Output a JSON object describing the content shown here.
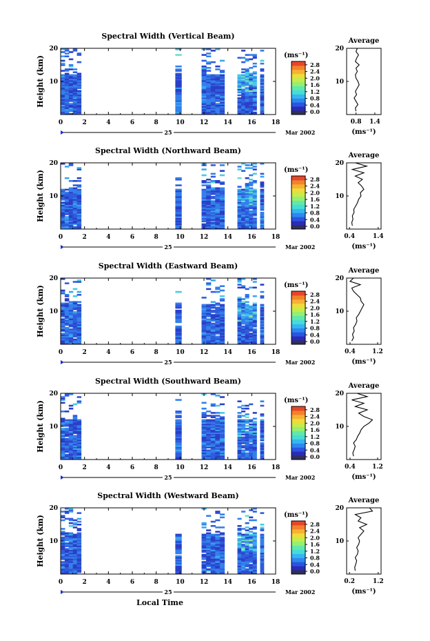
{
  "chart_data": [
    {
      "type": "heatmap",
      "title": "Spectral Width (Vertical Beam)",
      "ylabel": "Height (km)",
      "xticks": [
        "0",
        "2",
        "4",
        "6",
        "8",
        "10",
        "12",
        "14",
        "16",
        "18"
      ],
      "yticks": [
        "10",
        "20"
      ],
      "xlim": [
        0,
        18
      ],
      "ylim": [
        0,
        20
      ],
      "day_label": "25",
      "month_label": "Mar 2002",
      "colorbar": {
        "unit": "(ms⁻¹)",
        "ticks": [
          "0.0",
          "0.4",
          "0.8",
          "1.2",
          "1.6",
          "2.0",
          "2.4",
          "2.8"
        ]
      },
      "data_blocks": [
        {
          "start": 0.0,
          "end": 1.7
        },
        {
          "start": 9.6,
          "end": 10.1
        },
        {
          "start": 11.8,
          "end": 13.7
        },
        {
          "start": 14.8,
          "end": 16.4
        },
        {
          "start": 16.7,
          "end": 17.0
        }
      ],
      "average": {
        "title": "Average",
        "xlabel": "(ms⁻¹)",
        "xticks": [
          "0.8",
          "1.4"
        ],
        "yticks": [
          "10",
          "20"
        ],
        "xlim": [
          0.5,
          1.6
        ],
        "profile": [
          [
            0.8,
            1
          ],
          [
            0.78,
            2
          ],
          [
            0.86,
            3
          ],
          [
            0.8,
            4
          ],
          [
            0.74,
            5
          ],
          [
            0.82,
            6
          ],
          [
            0.78,
            7
          ],
          [
            0.84,
            8
          ],
          [
            0.9,
            9
          ],
          [
            0.86,
            10
          ],
          [
            0.8,
            11
          ],
          [
            0.78,
            12
          ],
          [
            0.84,
            13
          ],
          [
            0.8,
            14
          ],
          [
            0.9,
            15
          ],
          [
            0.78,
            16
          ],
          [
            0.82,
            17
          ],
          [
            0.88,
            18
          ],
          [
            0.8,
            19
          ],
          [
            0.84,
            20
          ]
        ]
      }
    },
    {
      "type": "heatmap",
      "title": "Spectral Width (Northward Beam)",
      "ylabel": "Height (km)",
      "xticks": [
        "0",
        "2",
        "4",
        "6",
        "8",
        "10",
        "12",
        "14",
        "16",
        "18"
      ],
      "yticks": [
        "10",
        "20"
      ],
      "xlim": [
        0,
        18
      ],
      "ylim": [
        0,
        20
      ],
      "day_label": "25",
      "month_label": "Mar 2002",
      "colorbar": {
        "unit": "(ms⁻¹)",
        "ticks": [
          "0.0",
          "0.4",
          "0.8",
          "1.2",
          "1.6",
          "2.0",
          "2.4",
          "2.8"
        ]
      },
      "data_blocks": [
        {
          "start": 0.0,
          "end": 1.7
        },
        {
          "start": 9.6,
          "end": 10.1
        },
        {
          "start": 11.8,
          "end": 13.7
        },
        {
          "start": 14.8,
          "end": 16.4
        },
        {
          "start": 16.7,
          "end": 17.0
        }
      ],
      "average": {
        "title": "Average",
        "xlabel": "(ms⁻¹)",
        "xticks": [
          "0.4",
          "1.4"
        ],
        "yticks": [
          "10",
          "20"
        ],
        "xlim": [
          0.3,
          1.5
        ],
        "profile": [
          [
            0.5,
            1
          ],
          [
            0.48,
            2
          ],
          [
            0.52,
            3
          ],
          [
            0.5,
            4
          ],
          [
            0.56,
            5
          ],
          [
            0.55,
            6
          ],
          [
            0.62,
            7
          ],
          [
            0.68,
            8
          ],
          [
            0.72,
            9
          ],
          [
            0.8,
            10
          ],
          [
            0.78,
            11
          ],
          [
            0.9,
            12
          ],
          [
            0.82,
            13
          ],
          [
            0.7,
            14
          ],
          [
            0.85,
            15
          ],
          [
            0.6,
            16
          ],
          [
            0.9,
            17
          ],
          [
            0.5,
            18
          ],
          [
            1.0,
            19
          ],
          [
            0.6,
            20
          ]
        ]
      }
    },
    {
      "type": "heatmap",
      "title": "Spectral Width (Eastward Beam)",
      "ylabel": "Height (km)",
      "xticks": [
        "0",
        "2",
        "4",
        "6",
        "8",
        "10",
        "12",
        "14",
        "16",
        "18"
      ],
      "yticks": [
        "10",
        "20"
      ],
      "xlim": [
        0,
        18
      ],
      "ylim": [
        0,
        20
      ],
      "day_label": "25",
      "month_label": "Mar 2002",
      "colorbar": {
        "unit": "(ms⁻¹)",
        "ticks": [
          "0.0",
          "0.4",
          "0.8",
          "1.2",
          "1.6",
          "2.0",
          "2.4",
          "2.8"
        ]
      },
      "data_blocks": [
        {
          "start": 0.0,
          "end": 1.7
        },
        {
          "start": 9.6,
          "end": 10.1
        },
        {
          "start": 11.8,
          "end": 13.7
        },
        {
          "start": 14.8,
          "end": 16.4
        },
        {
          "start": 16.7,
          "end": 17.0
        }
      ],
      "average": {
        "title": "Average",
        "xlabel": "(ms⁻¹)",
        "xticks": [
          "0.4",
          "1.2"
        ],
        "yticks": [
          "10",
          "20"
        ],
        "xlim": [
          0.3,
          1.3
        ],
        "profile": [
          [
            0.45,
            1
          ],
          [
            0.5,
            2
          ],
          [
            0.47,
            3
          ],
          [
            0.52,
            4
          ],
          [
            0.5,
            5
          ],
          [
            0.56,
            6
          ],
          [
            0.6,
            7
          ],
          [
            0.58,
            8
          ],
          [
            0.65,
            9
          ],
          [
            0.7,
            10
          ],
          [
            0.75,
            11
          ],
          [
            0.8,
            12
          ],
          [
            0.72,
            13
          ],
          [
            0.7,
            14
          ],
          [
            0.6,
            15
          ],
          [
            0.5,
            16
          ],
          [
            0.45,
            17
          ],
          [
            0.7,
            18
          ],
          [
            0.4,
            19
          ],
          [
            0.5,
            20
          ]
        ]
      }
    },
    {
      "type": "heatmap",
      "title": "Spectral Width (Southward Beam)",
      "ylabel": "Height (km)",
      "xticks": [
        "0",
        "2",
        "4",
        "6",
        "8",
        "10",
        "12",
        "14",
        "16",
        "18"
      ],
      "yticks": [
        "10",
        "20"
      ],
      "xlim": [
        0,
        18
      ],
      "ylim": [
        0,
        20
      ],
      "day_label": "25",
      "month_label": "Mar 2002",
      "colorbar": {
        "unit": "(ms⁻¹)",
        "ticks": [
          "0.0",
          "0.4",
          "0.8",
          "1.2",
          "1.6",
          "2.0",
          "2.4",
          "2.8"
        ]
      },
      "data_blocks": [
        {
          "start": 0.0,
          "end": 1.7
        },
        {
          "start": 9.6,
          "end": 10.1
        },
        {
          "start": 11.8,
          "end": 13.7
        },
        {
          "start": 14.8,
          "end": 16.4
        },
        {
          "start": 16.7,
          "end": 17.0
        }
      ],
      "average": {
        "title": "Average",
        "xlabel": "(ms⁻¹)",
        "xticks": [
          "0.4",
          "1.2"
        ],
        "yticks": [
          "10",
          "20"
        ],
        "xlim": [
          0.3,
          1.3
        ],
        "profile": [
          [
            0.5,
            1
          ],
          [
            0.48,
            2
          ],
          [
            0.52,
            3
          ],
          [
            0.55,
            4
          ],
          [
            0.5,
            5
          ],
          [
            0.58,
            6
          ],
          [
            0.62,
            7
          ],
          [
            0.68,
            8
          ],
          [
            0.72,
            9
          ],
          [
            0.8,
            10
          ],
          [
            0.95,
            11
          ],
          [
            1.05,
            12
          ],
          [
            0.8,
            13
          ],
          [
            0.65,
            14
          ],
          [
            0.9,
            15
          ],
          [
            0.55,
            16
          ],
          [
            0.8,
            17
          ],
          [
            0.45,
            18
          ],
          [
            0.9,
            19
          ],
          [
            0.6,
            20
          ]
        ]
      }
    },
    {
      "type": "heatmap",
      "title": "Spectral Width (Westward Beam)",
      "ylabel": "Height (km)",
      "xlabel": "Local Time",
      "xticks": [
        "0",
        "2",
        "4",
        "6",
        "8",
        "10",
        "12",
        "14",
        "16",
        "18"
      ],
      "yticks": [
        "10",
        "20"
      ],
      "xlim": [
        0,
        18
      ],
      "ylim": [
        0,
        20
      ],
      "day_label": "25",
      "month_label": "Mar 2002",
      "colorbar": {
        "unit": "(ms⁻¹)",
        "ticks": [
          "0.0",
          "0.4",
          "0.8",
          "1.2",
          "1.6",
          "2.0",
          "2.4",
          "2.8"
        ]
      },
      "data_blocks": [
        {
          "start": 0.0,
          "end": 1.7
        },
        {
          "start": 9.6,
          "end": 10.1
        },
        {
          "start": 11.8,
          "end": 13.7
        },
        {
          "start": 14.8,
          "end": 16.4
        },
        {
          "start": 16.7,
          "end": 17.0
        }
      ],
      "average": {
        "title": "Average",
        "xlabel": "(ms⁻¹)",
        "xticks": [
          "0.2",
          "1.2"
        ],
        "yticks": [
          "10",
          "20"
        ],
        "xlim": [
          0.1,
          1.3
        ],
        "profile": [
          [
            0.4,
            1
          ],
          [
            0.38,
            2
          ],
          [
            0.42,
            3
          ],
          [
            0.45,
            4
          ],
          [
            0.4,
            5
          ],
          [
            0.48,
            6
          ],
          [
            0.5,
            7
          ],
          [
            0.45,
            8
          ],
          [
            0.52,
            9
          ],
          [
            0.55,
            10
          ],
          [
            0.5,
            11
          ],
          [
            0.6,
            12
          ],
          [
            0.7,
            13
          ],
          [
            0.55,
            14
          ],
          [
            0.8,
            15
          ],
          [
            0.5,
            16
          ],
          [
            0.6,
            17
          ],
          [
            0.4,
            18
          ],
          [
            1.0,
            19
          ],
          [
            0.9,
            20
          ]
        ]
      }
    }
  ],
  "colors": {
    "colorbar": [
      "#30305a",
      "#2b2bb8",
      "#2a55e0",
      "#2d88f0",
      "#36b6f0",
      "#46dcd8",
      "#62e8a8",
      "#94ef72",
      "#c6ec4a",
      "#eedc3a",
      "#f6b234",
      "#f4822a",
      "#e6472a"
    ],
    "scale": [
      "#2a3fc8",
      "#2f5cdc",
      "#3380ea",
      "#3aa6ee",
      "#48cae6",
      "#6ae0c4",
      "#9aea8c",
      "#cce85a",
      "#f0ce3e",
      "#f3962c"
    ]
  },
  "marker_char": "▸"
}
